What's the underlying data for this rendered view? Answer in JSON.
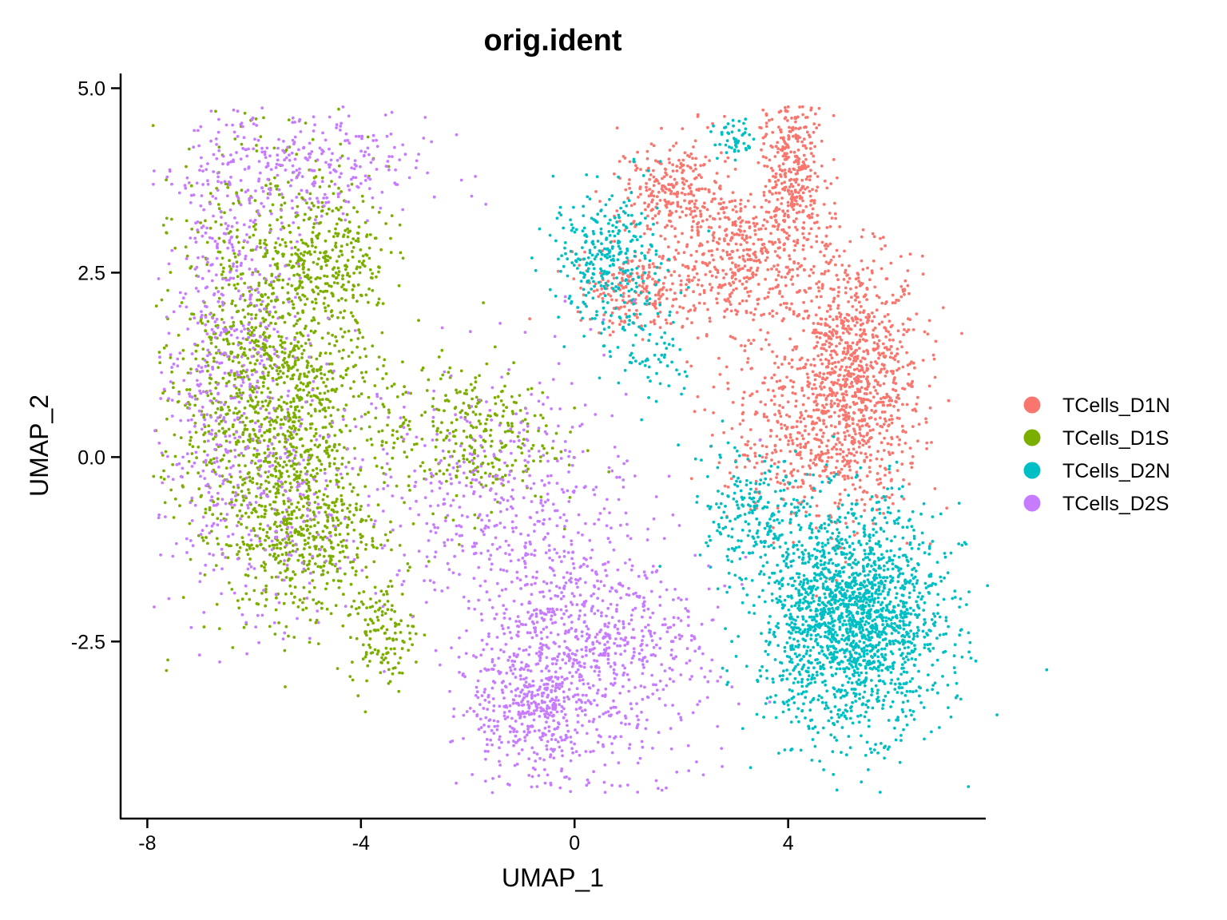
{
  "chart_data": {
    "type": "scatter",
    "title": "orig.ident",
    "xlabel": "UMAP_1",
    "ylabel": "UMAP_2",
    "xlim": [
      -8.5,
      7.7
    ],
    "ylim": [
      -4.9,
      5.2
    ],
    "x_ticks": [
      {
        "value": -8,
        "label": "-8"
      },
      {
        "value": -4,
        "label": "-4"
      },
      {
        "value": 0,
        "label": "0"
      },
      {
        "value": 4,
        "label": "4"
      }
    ],
    "y_ticks": [
      {
        "value": -2.5,
        "label": "-2.5"
      },
      {
        "value": 0.0,
        "label": "0.0"
      },
      {
        "value": 2.5,
        "label": "2.5"
      },
      {
        "value": 5.0,
        "label": "5.0"
      }
    ],
    "grid": false,
    "legend_position": "right",
    "series": [
      {
        "name": "TCells_D1N",
        "color": "#F8766D",
        "clusters": [
          {
            "x": 5.2,
            "y": 1.0,
            "sx": 0.65,
            "sy": 0.85,
            "weight": 0.4
          },
          {
            "x": 3.2,
            "y": 2.7,
            "sx": 0.8,
            "sy": 0.5,
            "weight": 0.2
          },
          {
            "x": 4.1,
            "y": 3.9,
            "sx": 0.3,
            "sy": 0.5,
            "weight": 0.12
          },
          {
            "x": 1.8,
            "y": 3.6,
            "sx": 0.5,
            "sy": 0.35,
            "weight": 0.1
          },
          {
            "x": 1.2,
            "y": 2.3,
            "sx": 0.6,
            "sy": 0.25,
            "weight": 0.08
          },
          {
            "x": 4.0,
            "y": 0.2,
            "sx": 0.7,
            "sy": 0.6,
            "weight": 0.1
          }
        ]
      },
      {
        "name": "TCells_D1S",
        "color": "#7CAE00",
        "clusters": [
          {
            "x": -5.6,
            "y": 1.0,
            "sx": 0.9,
            "sy": 1.4,
            "weight": 0.6
          },
          {
            "x": -5.0,
            "y": -1.0,
            "sx": 0.7,
            "sy": 0.6,
            "weight": 0.15
          },
          {
            "x": -3.6,
            "y": -2.4,
            "sx": 0.3,
            "sy": 0.35,
            "weight": 0.05
          },
          {
            "x": -2.0,
            "y": 0.3,
            "sx": 0.8,
            "sy": 0.5,
            "weight": 0.12
          },
          {
            "x": -4.5,
            "y": 2.8,
            "sx": 0.5,
            "sy": 0.4,
            "weight": 0.08
          }
        ]
      },
      {
        "name": "TCells_D2N",
        "color": "#00BFC4",
        "clusters": [
          {
            "x": 5.2,
            "y": -2.2,
            "sx": 0.85,
            "sy": 0.75,
            "weight": 0.75
          },
          {
            "x": 0.6,
            "y": 2.7,
            "sx": 0.5,
            "sy": 0.45,
            "weight": 0.12
          },
          {
            "x": 3.3,
            "y": -0.8,
            "sx": 0.5,
            "sy": 0.4,
            "weight": 0.08
          },
          {
            "x": 3.0,
            "y": 4.3,
            "sx": 0.2,
            "sy": 0.15,
            "weight": 0.02
          },
          {
            "x": 1.5,
            "y": 1.4,
            "sx": 0.4,
            "sy": 0.4,
            "weight": 0.03
          }
        ]
      },
      {
        "name": "TCells_D2S",
        "color": "#C77CFF",
        "clusters": [
          {
            "x": -0.2,
            "y": -2.5,
            "sx": 0.9,
            "sy": 0.9,
            "weight": 0.3
          },
          {
            "x": -0.8,
            "y": -3.5,
            "sx": 0.6,
            "sy": 0.4,
            "weight": 0.1
          },
          {
            "x": -6.3,
            "y": 2.5,
            "sx": 0.6,
            "sy": 1.1,
            "weight": 0.12
          },
          {
            "x": -5.0,
            "y": 3.9,
            "sx": 1.1,
            "sy": 0.35,
            "weight": 0.1
          },
          {
            "x": -6.8,
            "y": 0.5,
            "sx": 0.5,
            "sy": 1.2,
            "weight": 0.08
          },
          {
            "x": -1.5,
            "y": -0.5,
            "sx": 1.3,
            "sy": 0.9,
            "weight": 0.15
          },
          {
            "x": -5.5,
            "y": -0.5,
            "sx": 0.8,
            "sy": 0.9,
            "weight": 0.08
          },
          {
            "x": 1.5,
            "y": -2.5,
            "sx": 0.7,
            "sy": 0.7,
            "weight": 0.07
          }
        ]
      }
    ]
  }
}
